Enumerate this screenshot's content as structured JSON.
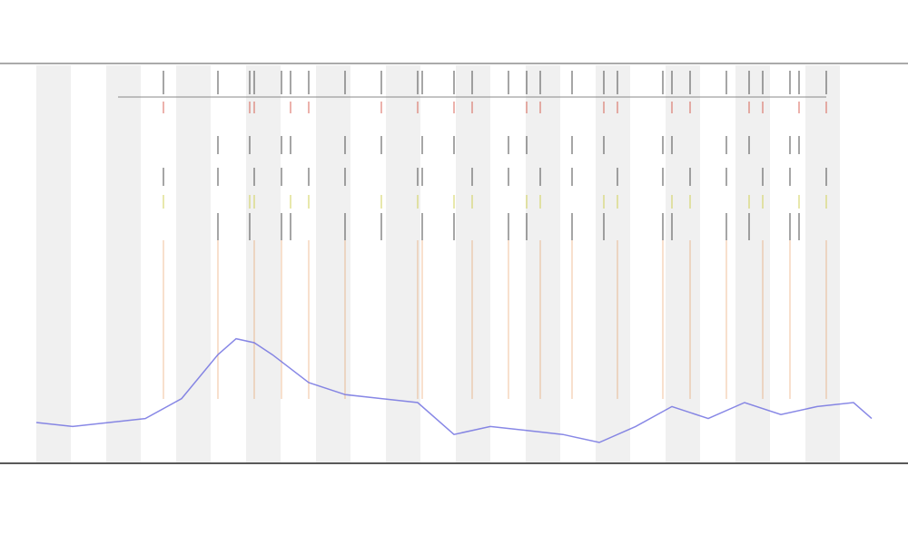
{
  "chart_data": {
    "type": "line",
    "x": [
      0,
      40,
      80,
      120,
      160,
      200,
      220,
      240,
      260,
      300,
      340,
      380,
      420,
      460,
      500,
      540,
      580,
      620,
      660,
      700,
      740,
      780,
      820,
      860,
      900,
      920
    ],
    "series": [
      {
        "color": "#6a6ae0",
        "values": [
          10,
          9,
          10,
          11,
          16,
          27,
          31,
          30,
          27,
          20,
          17,
          16,
          15,
          7,
          9,
          8,
          7,
          5,
          9,
          14,
          11,
          15,
          12,
          14,
          15,
          11
        ]
      }
    ],
    "xlim": [
      0,
      920
    ],
    "ylim": [
      0,
      100
    ],
    "events": [
      140,
      200,
      235,
      240,
      270,
      280,
      300,
      340,
      380,
      420,
      425,
      460,
      480,
      520,
      540,
      555,
      590,
      625,
      640,
      690,
      700,
      720,
      760,
      785,
      800,
      830,
      840,
      870
    ],
    "event_colors": [
      "#222222",
      "#d04030",
      "#222222",
      "#222222",
      "#c8c830",
      "#222222",
      "#e08030"
    ]
  }
}
